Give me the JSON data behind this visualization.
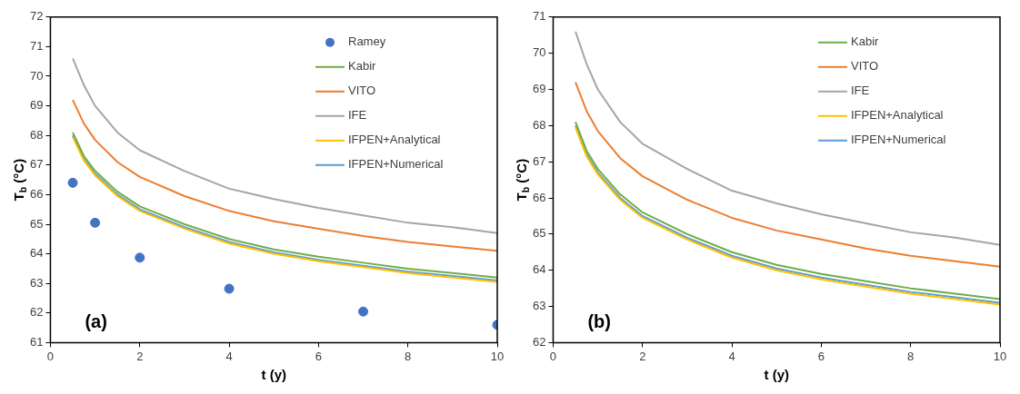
{
  "chart_data": [
    {
      "type": "line",
      "xlabel": "t (y)",
      "ylabel": "T$_{b}$ (°C)",
      "xlim": [
        0,
        10
      ],
      "xticks": [
        0,
        2,
        4,
        6,
        8,
        10
      ],
      "ylim": [
        61,
        72
      ],
      "yticks": [
        61,
        62,
        63,
        64,
        65,
        66,
        67,
        68,
        69,
        70,
        71,
        72
      ],
      "grid": false,
      "legend": "top right",
      "annotations": [
        "(a)"
      ],
      "x": [
        0.5,
        0.75,
        1,
        1.5,
        2,
        3,
        4,
        5,
        6,
        7,
        8,
        9,
        10
      ],
      "series": [
        {
          "name": "Ramey",
          "type": "scatter",
          "marker": "circle",
          "color": "#4472c4",
          "x": [
            0.5,
            1,
            2,
            4,
            7,
            10
          ],
          "values": [
            66.4,
            65.05,
            63.87,
            62.82,
            62.05,
            61.6
          ]
        },
        {
          "name": "Kabir",
          "marker": "none",
          "color": "#70ad47",
          "values": [
            68.1,
            67.3,
            66.8,
            66.1,
            65.6,
            65.0,
            64.5,
            64.15,
            63.9,
            63.7,
            63.5,
            63.35,
            63.2
          ]
        },
        {
          "name": "VITO",
          "marker": "none",
          "color": "#ed7d31",
          "values": [
            69.2,
            68.4,
            67.85,
            67.1,
            66.6,
            65.95,
            65.45,
            65.1,
            64.85,
            64.6,
            64.4,
            64.25,
            64.1
          ]
        },
        {
          "name": "IFE",
          "marker": "none",
          "color": "#a5a5a5",
          "values": [
            70.6,
            69.7,
            69.0,
            68.1,
            67.5,
            66.8,
            66.2,
            65.85,
            65.55,
            65.3,
            65.05,
            64.9,
            64.7
          ]
        },
        {
          "name": "IFPEN+Analytical",
          "marker": "none",
          "color": "#ffc000",
          "values": [
            67.95,
            67.15,
            66.65,
            65.95,
            65.45,
            64.85,
            64.35,
            64.0,
            63.75,
            63.55,
            63.35,
            63.2,
            63.05
          ]
        },
        {
          "name": "IFPEN+Numerical",
          "marker": "none",
          "color": "#5b9bd5",
          "values": [
            68.0,
            67.2,
            66.7,
            66.0,
            65.5,
            64.9,
            64.4,
            64.05,
            63.8,
            63.6,
            63.4,
            63.25,
            63.1
          ]
        }
      ]
    },
    {
      "type": "line",
      "xlabel": "t (y)",
      "ylabel": "T$_{b}$ (°C)",
      "xlim": [
        0,
        10
      ],
      "xticks": [
        0,
        2,
        4,
        6,
        8,
        10
      ],
      "ylim": [
        62,
        71
      ],
      "yticks": [
        62,
        63,
        64,
        65,
        66,
        67,
        68,
        69,
        70,
        71
      ],
      "grid": false,
      "legend": "top right",
      "annotations": [
        "(b)"
      ],
      "x": [
        0.5,
        0.75,
        1,
        1.5,
        2,
        3,
        4,
        5,
        6,
        7,
        8,
        9,
        10
      ],
      "series": [
        {
          "name": "Kabir",
          "marker": "none",
          "color": "#70ad47",
          "values": [
            68.1,
            67.3,
            66.8,
            66.1,
            65.6,
            65.0,
            64.5,
            64.15,
            63.9,
            63.7,
            63.5,
            63.35,
            63.2
          ]
        },
        {
          "name": "VITO",
          "marker": "none",
          "color": "#ed7d31",
          "values": [
            69.2,
            68.4,
            67.85,
            67.1,
            66.6,
            65.95,
            65.45,
            65.1,
            64.85,
            64.6,
            64.4,
            64.25,
            64.1
          ]
        },
        {
          "name": "IFE",
          "marker": "none",
          "color": "#a5a5a5",
          "values": [
            70.6,
            69.7,
            69.0,
            68.1,
            67.5,
            66.8,
            66.2,
            65.85,
            65.55,
            65.3,
            65.05,
            64.9,
            64.7
          ]
        },
        {
          "name": "IFPEN+Analytical",
          "marker": "none",
          "color": "#ffc000",
          "values": [
            67.95,
            67.15,
            66.65,
            65.95,
            65.45,
            64.85,
            64.35,
            64.0,
            63.75,
            63.55,
            63.35,
            63.2,
            63.05
          ]
        },
        {
          "name": "IFPEN+Numerical",
          "marker": "none",
          "color": "#5b9bd5",
          "values": [
            68.0,
            67.2,
            66.7,
            66.0,
            65.5,
            64.9,
            64.4,
            64.05,
            63.8,
            63.6,
            63.4,
            63.25,
            63.1
          ]
        }
      ]
    }
  ]
}
